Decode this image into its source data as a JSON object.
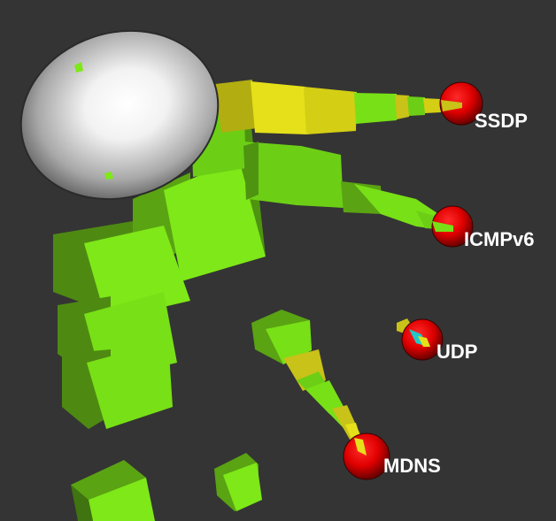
{
  "scene": {
    "background": "#343434",
    "hub": {
      "name": "white-sphere-hub",
      "color": "#ffffff"
    },
    "protocol_nodes": [
      {
        "id": "ssdp",
        "label": "SSDP",
        "color": "#dd0000"
      },
      {
        "id": "icmpv6",
        "label": "ICMPv6",
        "color": "#dd0000"
      },
      {
        "id": "udp",
        "label": "UDP",
        "color": "#dd0000"
      },
      {
        "id": "mdns",
        "label": "MDNS",
        "color": "#dd0000"
      }
    ],
    "packet_colors": {
      "green": "#7ee818",
      "yellow": "#e6e01a",
      "cyan": "#22c8c8"
    }
  }
}
